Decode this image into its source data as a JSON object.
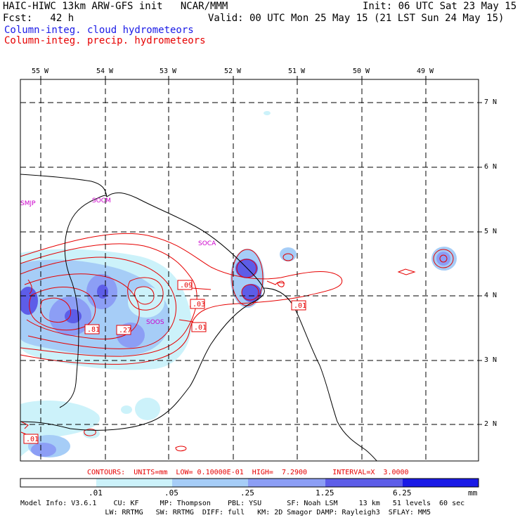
{
  "header": {
    "model_line": "HAIC-HIWC 13km ARW-GFS init   NCAR/MMM",
    "init": "Init: 06 UTC Sat 23 May 15",
    "fcst": "Fcst:   42 h",
    "valid": "Valid: 00 UTC Mon 25 May 15 (21 LST Sun 24 May 15)",
    "field_cloud": "Column-integ. cloud hydrometeors",
    "field_precip": "Column-integ. precip. hydrometeors"
  },
  "colors": {
    "cloud": "#1a1ae6",
    "precip": "#e60000",
    "station": "#cc00cc",
    "fill_levels": [
      "#ffffff",
      "#ccf2fa",
      "#a6cdf7",
      "#8c9ef5",
      "#5d5de8",
      "#1a1ae6"
    ]
  },
  "axes": {
    "longitude_labels": [
      "55 W",
      "54 W",
      "53 W",
      "52 W",
      "51 W",
      "50 W",
      "49 W"
    ],
    "latitude_labels": [
      "7 N",
      "6 N",
      "5 N",
      "4 N",
      "3 N",
      "2 N"
    ]
  },
  "stations": [
    "SMJP",
    "SOCM",
    "SOCA",
    "SOOS"
  ],
  "contour_labels": [
    ".09",
    ".03",
    ".01",
    ".81",
    ".27",
    ".01",
    ".01"
  ],
  "contour_info": {
    "text": "CONTOURS:  UNITS=mm  LOW= 0.10000E-01  HIGH=  7.2900      INTERVAL=X  3.0000"
  },
  "colorbar": {
    "labels": [
      ".01",
      ".05",
      ".25",
      "1.25",
      "6.25"
    ],
    "units": "mm"
  },
  "model_info": {
    "line1": "Model Info: V3.6.1    CU: KF     MP: Thompson    PBL: YSU      SF: Noah LSM     13 km   51 levels  60 sec",
    "line2": "                    LW: RRTMG   SW: RRTMG  DIFF: full   KM: 2D Smagor DAMP: Rayleigh3  SFLAY: MM5"
  }
}
